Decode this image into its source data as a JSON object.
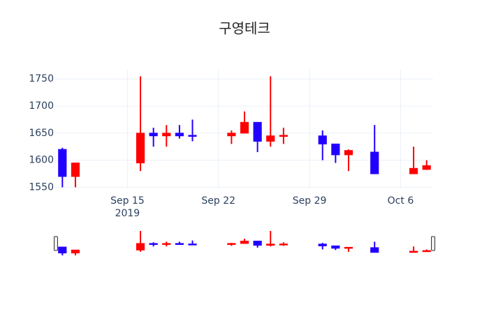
{
  "chart_data": {
    "type": "candlestick",
    "title": "구영테크",
    "x": [
      "2019-09-10",
      "2019-09-11",
      "2019-09-16",
      "2019-09-17",
      "2019-09-18",
      "2019-09-19",
      "2019-09-20",
      "2019-09-23",
      "2019-09-24",
      "2019-09-25",
      "2019-09-26",
      "2019-09-27",
      "2019-09-30",
      "2019-10-01",
      "2019-10-02",
      "2019-10-04",
      "2019-10-07",
      "2019-10-08"
    ],
    "open": [
      1620,
      1570,
      1595,
      1650,
      1645,
      1650,
      1646,
      1645,
      1650,
      1670,
      1635,
      1644,
      1645,
      1630,
      1610,
      1615,
      1575,
      1583
    ],
    "high": [
      1623,
      1595,
      1755,
      1660,
      1665,
      1665,
      1675,
      1655,
      1690,
      1670,
      1755,
      1660,
      1655,
      1630,
      1620,
      1665,
      1625,
      1600
    ],
    "low": [
      1550,
      1550,
      1580,
      1625,
      1625,
      1640,
      1635,
      1630,
      1650,
      1615,
      1625,
      1630,
      1600,
      1595,
      1580,
      1575,
      1575,
      1582
    ],
    "close": [
      1570,
      1595,
      1650,
      1645,
      1650,
      1645,
      1645,
      1650,
      1670,
      1635,
      1645,
      1646,
      1630,
      1610,
      1618,
      1575,
      1585,
      1590
    ],
    "increasing_color": "#ff0000",
    "decreasing_color": "#2200ff",
    "xlim": [
      "2019-09-09T12:00",
      "2019-10-08T12:00"
    ],
    "xticks": [
      {
        "value": "2019-09-15",
        "label": "Sep 15\n2019"
      },
      {
        "value": "2019-09-22",
        "label": "Sep 22"
      },
      {
        "value": "2019-09-29",
        "label": "Sep 29"
      },
      {
        "value": "2019-10-06",
        "label": "Oct 6"
      }
    ],
    "ylim": [
      1548,
      1767
    ],
    "yticks": [
      1550,
      1600,
      1650,
      1700,
      1750
    ],
    "grid": true,
    "rangeslider": true
  }
}
